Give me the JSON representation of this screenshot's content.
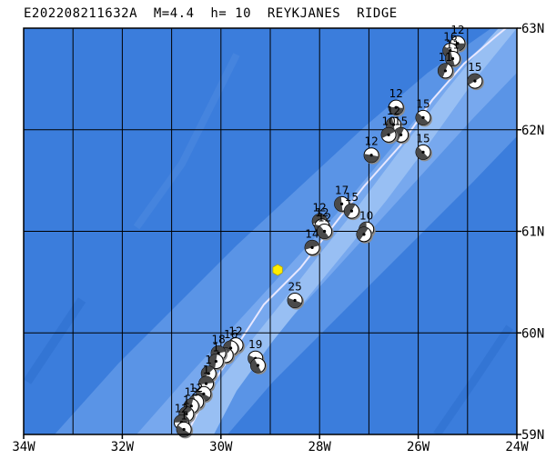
{
  "header": {
    "title": "E202208211632A  M=4.4  h= 10  REYKJANES  RIDGE"
  },
  "map": {
    "lon_range": [
      -34,
      -24
    ],
    "lat_range": [
      59,
      63
    ],
    "x_ticks": [
      {
        "lon": -34,
        "label": "34W"
      },
      {
        "lon": -32,
        "label": "32W"
      },
      {
        "lon": -30,
        "label": "30W"
      },
      {
        "lon": -28,
        "label": "28W"
      },
      {
        "lon": -26,
        "label": "26W"
      },
      {
        "lon": -24,
        "label": "24W"
      }
    ],
    "y_ticks": [
      {
        "lat": 63,
        "label": "63N"
      },
      {
        "lat": 62,
        "label": "62N"
      },
      {
        "lat": 61,
        "label": "61N"
      },
      {
        "lat": 60,
        "label": "60N"
      },
      {
        "lat": 59,
        "label": "59N"
      }
    ],
    "colors": {
      "deep": "#3b7ddc",
      "mid": "#5a94e6",
      "ridge": "#77a8ee",
      "crest": "#98bff3",
      "plate_boundary": "#e8e8ff",
      "epicenter": "#ffee00"
    },
    "epicenter": {
      "lon": -28.85,
      "lat": 60.62
    },
    "mechanisms": [
      {
        "lon": -25.2,
        "lat": 62.85,
        "label": "12"
      },
      {
        "lon": -25.35,
        "lat": 62.78,
        "label": "16"
      },
      {
        "lon": -25.3,
        "lat": 62.7,
        "label": "11"
      },
      {
        "lon": -25.45,
        "lat": 62.58,
        "label": "11"
      },
      {
        "lon": -24.85,
        "lat": 62.48,
        "label": "15"
      },
      {
        "lon": -26.45,
        "lat": 62.22,
        "label": "12"
      },
      {
        "lon": -25.9,
        "lat": 62.12,
        "label": "15"
      },
      {
        "lon": -26.5,
        "lat": 62.05,
        "label": "12"
      },
      {
        "lon": -26.35,
        "lat": 61.95,
        "label": "15"
      },
      {
        "lon": -26.6,
        "lat": 61.95,
        "label": "10"
      },
      {
        "lon": -26.95,
        "lat": 61.75,
        "label": "12"
      },
      {
        "lon": -25.9,
        "lat": 61.78,
        "label": "15"
      },
      {
        "lon": -27.55,
        "lat": 61.27,
        "label": "17"
      },
      {
        "lon": -27.35,
        "lat": 61.2,
        "label": "15"
      },
      {
        "lon": -28.0,
        "lat": 61.1,
        "label": "12"
      },
      {
        "lon": -27.95,
        "lat": 61.05,
        "label": "12"
      },
      {
        "lon": -27.9,
        "lat": 61.0,
        "label": "12"
      },
      {
        "lon": -27.05,
        "lat": 61.02,
        "label": "10"
      },
      {
        "lon": -27.1,
        "lat": 60.97,
        "label": ""
      },
      {
        "lon": -28.15,
        "lat": 60.84,
        "label": "14"
      },
      {
        "lon": -28.5,
        "lat": 60.32,
        "label": "25"
      },
      {
        "lon": -29.7,
        "lat": 59.88,
        "label": "12"
      },
      {
        "lon": -29.8,
        "lat": 59.85,
        "label": "16"
      },
      {
        "lon": -29.9,
        "lat": 59.78,
        "label": ""
      },
      {
        "lon": -30.05,
        "lat": 59.8,
        "label": "18"
      },
      {
        "lon": -29.3,
        "lat": 59.75,
        "label": "19"
      },
      {
        "lon": -29.25,
        "lat": 59.68,
        "label": ""
      },
      {
        "lon": -30.1,
        "lat": 59.72,
        "label": "1"
      },
      {
        "lon": -30.25,
        "lat": 59.6,
        "label": "1"
      },
      {
        "lon": -30.3,
        "lat": 59.5,
        "label": "1"
      },
      {
        "lon": -30.35,
        "lat": 59.4,
        "label": ""
      },
      {
        "lon": -30.5,
        "lat": 59.32,
        "label": "12"
      },
      {
        "lon": -30.6,
        "lat": 59.28,
        "label": "12"
      },
      {
        "lon": -30.7,
        "lat": 59.2,
        "label": "1"
      },
      {
        "lon": -30.8,
        "lat": 59.12,
        "label": "12"
      },
      {
        "lon": -30.75,
        "lat": 59.05,
        "label": "1"
      }
    ]
  }
}
